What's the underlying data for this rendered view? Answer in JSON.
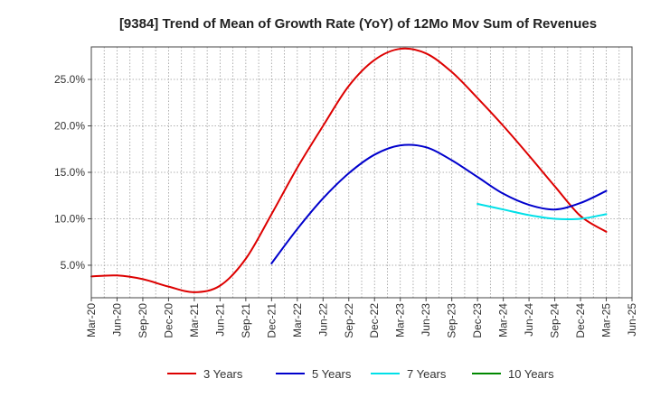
{
  "chart_data": {
    "type": "line",
    "title": "[9384]  Trend of Mean of Growth Rate (YoY) of 12Mo Mov Sum of Revenues",
    "xlabel": "",
    "ylabel": "",
    "ylim": [
      1.5,
      28.5
    ],
    "yticks": [
      5,
      10,
      15,
      20,
      25
    ],
    "ytick_labels": [
      "5.0%",
      "10.0%",
      "15.0%",
      "20.0%",
      "25.0%"
    ],
    "x_tick_labels": [
      "Mar-20",
      "Jun-20",
      "Sep-20",
      "Dec-20",
      "Mar-21",
      "Jun-21",
      "Sep-21",
      "Dec-21",
      "Mar-22",
      "Jun-22",
      "Sep-22",
      "Dec-22",
      "Mar-23",
      "Jun-23",
      "Sep-23",
      "Dec-23",
      "Mar-24",
      "Jun-24",
      "Sep-24",
      "Dec-24",
      "Mar-25",
      "Jun-25"
    ],
    "x_range_months": [
      0,
      63
    ],
    "grid": true,
    "legend_position": "bottom",
    "series": [
      {
        "name": "3 Years",
        "color": "#dd0000",
        "x": [
          0,
          3,
          6,
          9,
          12,
          15,
          18,
          21,
          24,
          27,
          30,
          33,
          36,
          39,
          42,
          45,
          48,
          51,
          54,
          57,
          60
        ],
        "values": [
          3.8,
          3.9,
          3.5,
          2.7,
          2.1,
          2.8,
          5.7,
          10.5,
          15.5,
          20.0,
          24.3,
          27.1,
          28.3,
          27.8,
          25.8,
          23.0,
          20.0,
          16.8,
          13.5,
          10.3,
          8.6
        ]
      },
      {
        "name": "5 Years",
        "color": "#0000cc",
        "x": [
          21,
          24,
          27,
          30,
          33,
          36,
          39,
          42,
          45,
          48,
          51,
          54,
          57,
          60
        ],
        "values": [
          5.2,
          8.9,
          12.2,
          14.9,
          16.9,
          17.9,
          17.7,
          16.3,
          14.5,
          12.7,
          11.5,
          11.0,
          11.7,
          13.0
        ]
      },
      {
        "name": "7 Years",
        "color": "#00e0e8",
        "x": [
          45,
          48,
          51,
          54,
          57,
          60
        ],
        "values": [
          11.6,
          11.0,
          10.4,
          10.0,
          10.0,
          10.5
        ]
      },
      {
        "name": "10 Years",
        "color": "#008800",
        "x": [],
        "values": []
      }
    ]
  }
}
